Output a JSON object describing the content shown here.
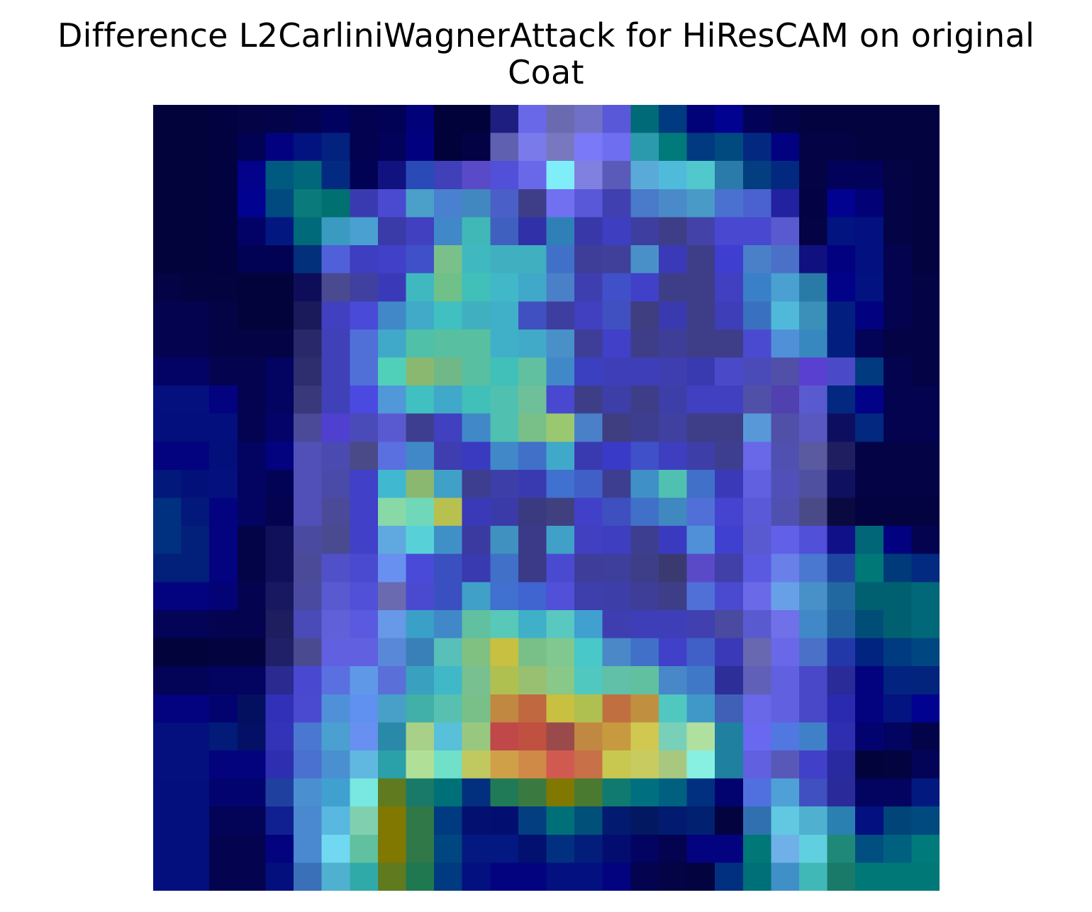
{
  "title": {
    "line1": "Difference L2CarliniWagnerAttack for HiResCAM on original",
    "line2": "Coat"
  },
  "chart_data": {
    "type": "heatmap",
    "title": "Difference L2CarliniWagnerAttack for HiResCAM on original Coat",
    "rows": 28,
    "cols": 28,
    "axes_visible": false,
    "colormap": "jet-over-grayscale",
    "cell_colors": [
      [
        "#03033c",
        "#03033c",
        "#020240",
        "#030345",
        "#03034a",
        "#020250",
        "#010160",
        "#020250",
        "#010155",
        "#01017a",
        "#02023a",
        "#02023a",
        "#1e1e80",
        "#6868e8",
        "#6a6ab0",
        "#7070c8",
        "#5858d8",
        "#006a78",
        "#003a80",
        "#020278",
        "#020290",
        "#020258",
        "#03034a",
        "#030340",
        "#030340",
        "#030340",
        "#030340",
        "#030340"
      ],
      [
        "#03033c",
        "#03033c",
        "#020240",
        "#020255",
        "#020280",
        "#021380",
        "#03217e",
        "#020250",
        "#02025a",
        "#010180",
        "#02023a",
        "#020245",
        "#6060b0",
        "#7a7aea",
        "#7878c0",
        "#7a7af8",
        "#6e6ef0",
        "#2a9aac",
        "#007a7a",
        "#013a80",
        "#004a80",
        "#032880",
        "#020280",
        "#030345",
        "#030345",
        "#030340",
        "#030340",
        "#030340"
      ],
      [
        "#03033c",
        "#03033c",
        "#020240",
        "#02028a",
        "#005a80",
        "#00687a",
        "#022a80",
        "#020255",
        "#111180",
        "#2a4ab8",
        "#4040b8",
        "#5a4ac8",
        "#5050d8",
        "#6868e8",
        "#80eef8",
        "#8080e0",
        "#5a5ab8",
        "#5aaad8",
        "#50badb",
        "#50c8cc",
        "#2a7aaa",
        "#023e80",
        "#032880",
        "#030345",
        "#02025a",
        "#02025a",
        "#030345",
        "#030340"
      ],
      [
        "#03033c",
        "#03033c",
        "#020240",
        "#020290",
        "#004a80",
        "#0a7a7a",
        "#007070",
        "#3a3ab0",
        "#4a4ad0",
        "#4aa0c8",
        "#4a80d0",
        "#4288c0",
        "#4a60c8",
        "#3e3e88",
        "#7070f0",
        "#5858d8",
        "#4040b0",
        "#4a7aca",
        "#4a8ac8",
        "#4a9ac8",
        "#4a70d0",
        "#4a62d0",
        "#2222a0",
        "#020245",
        "#020290",
        "#020276",
        "#030345",
        "#030340"
      ],
      [
        "#03033c",
        "#03033c",
        "#020240",
        "#020266",
        "#021880",
        "#006a7a",
        "#3a9ac0",
        "#4aa0d0",
        "#3a3aa8",
        "#4040c0",
        "#4088c8",
        "#40b8b8",
        "#4060c0",
        "#3030a8",
        "#3080b8",
        "#3838a8",
        "#3e3ec0",
        "#3e3ea0",
        "#3e3e88",
        "#4242a8",
        "#4848d0",
        "#4848d0",
        "#5a5ad0",
        "#030345",
        "#021480",
        "#021080",
        "#030345",
        "#030340"
      ],
      [
        "#03033c",
        "#03033c",
        "#020240",
        "#020255",
        "#020255",
        "#02307a",
        "#5060d8",
        "#3e3ec0",
        "#4040c8",
        "#4050c8",
        "#7ac08a",
        "#40b8c0",
        "#40b0c0",
        "#40b0c0",
        "#4070c8",
        "#3e3e98",
        "#40409a",
        "#4a90c8",
        "#3a3ab8",
        "#3e3e88",
        "#3e3ed0",
        "#4a80c8",
        "#4a70c8",
        "#101080",
        "#020280",
        "#021080",
        "#030350",
        "#030340"
      ],
      [
        "#030345",
        "#030340",
        "#030340",
        "#03033c",
        "#03033c",
        "#0d0d5a",
        "#4a4a90",
        "#4040a0",
        "#3a3ab8",
        "#40b8c0",
        "#70c08a",
        "#40c0b8",
        "#40b8c8",
        "#40a8c8",
        "#4a80c8",
        "#3e3eb0",
        "#4050c8",
        "#4040c8",
        "#3e3e88",
        "#3e3e88",
        "#4040c0",
        "#3a80c8",
        "#4aa0d0",
        "#2a7aa8",
        "#020288",
        "#021280",
        "#030350",
        "#030345"
      ],
      [
        "#030350",
        "#030350",
        "#030345",
        "#03033c",
        "#03033c",
        "#1a1a5a",
        "#4040c0",
        "#4a4ad8",
        "#4088c8",
        "#40aac8",
        "#40c0c0",
        "#40b0c0",
        "#40b0c8",
        "#4050c0",
        "#3e3ea0",
        "#4040c0",
        "#4050c0",
        "#3e3e80",
        "#3a3ab0",
        "#3e3e88",
        "#3e3eb8",
        "#3a70c0",
        "#50b8d8",
        "#3a90b8",
        "#021f80",
        "#020280",
        "#030350",
        "#030345"
      ],
      [
        "#030350",
        "#030350",
        "#030345",
        "#030345",
        "#030345",
        "#28286a",
        "#4040b8",
        "#5070d8",
        "#40a8c8",
        "#50c0a8",
        "#58c0a0",
        "#58c0a0",
        "#40b0c8",
        "#40aac8",
        "#4a90c8",
        "#3e3e98",
        "#4040c8",
        "#3e3e88",
        "#3e3e98",
        "#3e3e88",
        "#3e3e88",
        "#4a4ad0",
        "#5090d8",
        "#3888c0",
        "#021f80",
        "#030358",
        "#030345",
        "#030345"
      ],
      [
        "#030365",
        "#030365",
        "#030350",
        "#030350",
        "#030362",
        "#2e2e6e",
        "#4040b8",
        "#5070d8",
        "#50d0b8",
        "#8ab870",
        "#70b888",
        "#58c0a0",
        "#40c0b8",
        "#60c0a0",
        "#4088c8",
        "#3a40c0",
        "#3e3eb8",
        "#3e3eb8",
        "#3e3eb0",
        "#3a3ab0",
        "#4a4ac8",
        "#4a4ab8",
        "#5050a8",
        "#5a40d0",
        "#4a4ac8",
        "#023a80",
        "#030350",
        "#030345"
      ],
      [
        "#03107e",
        "#03107e",
        "#030380",
        "#030350",
        "#030362",
        "#38387a",
        "#4040b8",
        "#4a4ae0",
        "#5098d8",
        "#40c0c0",
        "#40a8c8",
        "#40c0b8",
        "#50c0b0",
        "#6ec09a",
        "#4848d0",
        "#3e3e88",
        "#3e3ea8",
        "#3e3e88",
        "#3e3ea8",
        "#4040c0",
        "#4040c0",
        "#5050a8",
        "#5040b0",
        "#5a5ad0",
        "#022880",
        "#020288",
        "#030350",
        "#030350"
      ],
      [
        "#030f7c",
        "#030f7c",
        "#030f7c",
        "#030352",
        "#03036a",
        "#4a4a98",
        "#5040d0",
        "#4a4ab8",
        "#5a5ad0",
        "#3e3e90",
        "#4040c0",
        "#4088c8",
        "#50c0b0",
        "#78c088",
        "#9ac870",
        "#4a80c8",
        "#3e3e80",
        "#3e3e90",
        "#4040a0",
        "#3e3e88",
        "#3e3e88",
        "#5898d8",
        "#5050a8",
        "#5858c0",
        "#0e0e60",
        "#022880",
        "#030350",
        "#030350"
      ],
      [
        "#030380",
        "#030380",
        "#030f7a",
        "#030362",
        "#030380",
        "#5050b8",
        "#4a4ab0",
        "#4a4a88",
        "#5a70e0",
        "#4088c8",
        "#3e3eb0",
        "#3a3ac0",
        "#4088c8",
        "#4070c8",
        "#40a8c8",
        "#3a3ab0",
        "#3a3ac8",
        "#4050c8",
        "#3e3ec0",
        "#3e3ea8",
        "#3e3e90",
        "#6868e8",
        "#5050b0",
        "#5a5aa0",
        "#1e1e60",
        "#030345",
        "#030345",
        "#030345"
      ],
      [
        "#02187a",
        "#02107a",
        "#03107e",
        "#030362",
        "#030356",
        "#5050b8",
        "#4a4aa8",
        "#4040c8",
        "#40b8d0",
        "#8ab870",
        "#40a0c8",
        "#3e3e90",
        "#3e3ea8",
        "#3a3ab0",
        "#4070d0",
        "#4060c8",
        "#3e3e90",
        "#4090c8",
        "#50c0b0",
        "#4070c8",
        "#3a3ab8",
        "#6060e0",
        "#5050b8",
        "#5050a0",
        "#101060",
        "#030345",
        "#030345",
        "#030345"
      ],
      [
        "#003080",
        "#02187a",
        "#030380",
        "#030362",
        "#030350",
        "#5050b8",
        "#4a4a98",
        "#4040c8",
        "#88d8a8",
        "#70d8b8",
        "#b8c050",
        "#3a3ab8",
        "#3a3aa8",
        "#3a3a80",
        "#404080",
        "#4040c8",
        "#3e50c0",
        "#4070c8",
        "#4088c0",
        "#5070d8",
        "#4444d0",
        "#5a5ad8",
        "#5050b0",
        "#4a4a88",
        "#0a0a40",
        "#030340",
        "#030340",
        "#030340"
      ],
      [
        "#003080",
        "#021f7a",
        "#030380",
        "#030348",
        "#10105a",
        "#4a4aa0",
        "#4a4a90",
        "#4040c8",
        "#60a8e0",
        "#58d0d8",
        "#4090c8",
        "#3a3aa0",
        "#4090c0",
        "#3a3a88",
        "#40a0c8",
        "#4040c0",
        "#3e3ec0",
        "#3e3e90",
        "#3a3ac0",
        "#5090d8",
        "#4040d0",
        "#5a5ad0",
        "#6060e8",
        "#5050d8",
        "#101088",
        "#006678",
        "#020280",
        "#030350"
      ],
      [
        "#021f7a",
        "#021f7a",
        "#030380",
        "#030348",
        "#10105a",
        "#4a4a98",
        "#5050c8",
        "#4a4ad0",
        "#6890f0",
        "#4a4ad8",
        "#3a50c0",
        "#3a3ab0",
        "#4070c8",
        "#3a3a88",
        "#4a4ad0",
        "#3e3e9a",
        "#3e3e9c",
        "#3e3e88",
        "#3a3a70",
        "#5a4ac8",
        "#4040a8",
        "#5a5ae0",
        "#6880e8",
        "#4a78d0",
        "#1e46a0",
        "#007878",
        "#003a7a",
        "#012a80"
      ],
      [
        "#030380",
        "#030380",
        "#030376",
        "#030350",
        "#181860",
        "#4a4aa0",
        "#5a5ad0",
        "#5050d8",
        "#6a6ab0",
        "#4a4ad0",
        "#3a50c0",
        "#40a0c8",
        "#4070d0",
        "#4064d0",
        "#5050d8",
        "#3e3eac",
        "#3e3ea8",
        "#3e3e98",
        "#3e3e88",
        "#5070d8",
        "#4a4ad0",
        "#6a6ae8",
        "#68a0e8",
        "#4890c8",
        "#2268a0",
        "#006070",
        "#006070",
        "#006878"
      ],
      [
        "#030358",
        "#030358",
        "#030350",
        "#030350",
        "#1d1d60",
        "#4a4ab8",
        "#6060d8",
        "#5a5ae0",
        "#6898e8",
        "#3aa0c8",
        "#4088c8",
        "#60c0a0",
        "#58c8b8",
        "#40b0c8",
        "#58c8c0",
        "#40a0d0",
        "#3e3eb0",
        "#3e3eb8",
        "#3e3eb8",
        "#4040b0",
        "#4a4aa0",
        "#5a5ad0",
        "#7070e8",
        "#4088c8",
        "#2060a0",
        "#004e78",
        "#006070",
        "#006878"
      ],
      [
        "#03033c",
        "#03033c",
        "#030340",
        "#030340",
        "#202068",
        "#4a4a90",
        "#6060e0",
        "#6060e0",
        "#5a88d8",
        "#3a80b8",
        "#58c0b8",
        "#80c080",
        "#c8c040",
        "#78c088",
        "#80c890",
        "#48c8c8",
        "#4a88c8",
        "#4070c8",
        "#4040c8",
        "#4060c8",
        "#3a3ab8",
        "#6868b0",
        "#6868e8",
        "#4a70c8",
        "#2238a8",
        "#012480",
        "#003a80",
        "#004680"
      ],
      [
        "#030358",
        "#030358",
        "#030360",
        "#030360",
        "#2a2a90",
        "#4848d0",
        "#5a70e0",
        "#6098e8",
        "#5a70d8",
        "#3aa0c0",
        "#40b8c8",
        "#78c090",
        "#b0c050",
        "#98c070",
        "#88c888",
        "#50c8c0",
        "#60c0a8",
        "#60c0a0",
        "#4888c8",
        "#4078c8",
        "#2e2e98",
        "#6060b8",
        "#6060e0",
        "#4848c8",
        "#2a2a98",
        "#030380",
        "#022480",
        "#02247c"
      ],
      [
        "#030380",
        "#030380",
        "#030370",
        "#031060",
        "#3030b8",
        "#4a4ad0",
        "#5090d8",
        "#6090f0",
        "#48a0c8",
        "#40b0a8",
        "#58c0b0",
        "#78c088",
        "#c08840",
        "#c06840",
        "#c8c040",
        "#b0c050",
        "#c07040",
        "#c09040",
        "#50c8c0",
        "#4098c8",
        "#4060b8",
        "#6868e8",
        "#6060e0",
        "#4848c8",
        "#2a2ab0",
        "#030380",
        "#031480",
        "#020290"
      ],
      [
        "#03107e",
        "#03107e",
        "#021a78",
        "#031065",
        "#3333b8",
        "#4a78d0",
        "#4aa0d0",
        "#6890f0",
        "#2a88a8",
        "#a8d088",
        "#58c0d8",
        "#98c880",
        "#c04848",
        "#c05040",
        "#9a4a4a",
        "#c08840",
        "#c89a40",
        "#d0c850",
        "#78d0b8",
        "#b0e0a0",
        "#2080a0",
        "#6868f0",
        "#5078e0",
        "#4080c8",
        "#2e2eb0",
        "#030370",
        "#030360",
        "#03034a"
      ],
      [
        "#03107e",
        "#03107e",
        "#03037e",
        "#03037e",
        "#2e2eb0",
        "#4a70d0",
        "#4a90d0",
        "#60b8e0",
        "#2aa0a8",
        "#b0e098",
        "#70e0c8",
        "#c0c860",
        "#d0a048",
        "#d08a48",
        "#d05a50",
        "#c87048",
        "#c8c850",
        "#c8cc60",
        "#a8c880",
        "#88f0e0",
        "#2080a0",
        "#6060e0",
        "#5858b8",
        "#4040c8",
        "#2a2aa0",
        "#03033c",
        "#030340",
        "#030358"
      ],
      [
        "#030f7c",
        "#030f7c",
        "#030370",
        "#030370",
        "#2040a0",
        "#4a90d0",
        "#40a0d0",
        "#78e8e0",
        "#607a20",
        "#1a7a6a",
        "#007078",
        "#02307e",
        "#207a58",
        "#3a7a40",
        "#807800",
        "#4a7a30",
        "#107a70",
        "#007080",
        "#006080",
        "#023080",
        "#030370",
        "#5070e0",
        "#50a0d8",
        "#4050c0",
        "#2a2a9a",
        "#030360",
        "#030360",
        "#021a80"
      ],
      [
        "#030f7c",
        "#030f7c",
        "#030358",
        "#030358",
        "#102090",
        "#4a88d0",
        "#58b8e0",
        "#80d0b0",
        "#807800",
        "#307848",
        "#003a80",
        "#031070",
        "#030f70",
        "#023e80",
        "#007078",
        "#00507a",
        "#021a70",
        "#021860",
        "#021a70",
        "#022070",
        "#030340",
        "#3070b0",
        "#60c8e0",
        "#50b0d0",
        "#2a80b0",
        "#031080",
        "#004478",
        "#004a80"
      ],
      [
        "#030f7c",
        "#030f7c",
        "#030350",
        "#030350",
        "#030380",
        "#4a88d0",
        "#70d8f0",
        "#60c0a0",
        "#807800",
        "#307848",
        "#004680",
        "#031880",
        "#031880",
        "#021070",
        "#023080",
        "#021e7a",
        "#030d70",
        "#030362",
        "#030350",
        "#030380",
        "#030380",
        "#007878",
        "#70b0e8",
        "#60d0e0",
        "#208878",
        "#004f80",
        "#006080",
        "#007a7a"
      ],
      [
        "#030f7c",
        "#030f7c",
        "#030350",
        "#030350",
        "#030f7c",
        "#3a70b8",
        "#50b0d0",
        "#30aaa8",
        "#607a20",
        "#207850",
        "#003a80",
        "#031080",
        "#030380",
        "#030380",
        "#031080",
        "#031080",
        "#030380",
        "#030350",
        "#030345",
        "#030340",
        "#023080",
        "#007078",
        "#4090c8",
        "#40b8b8",
        "#1a7a6a",
        "#007878",
        "#007878",
        "#007878"
      ]
    ]
  }
}
